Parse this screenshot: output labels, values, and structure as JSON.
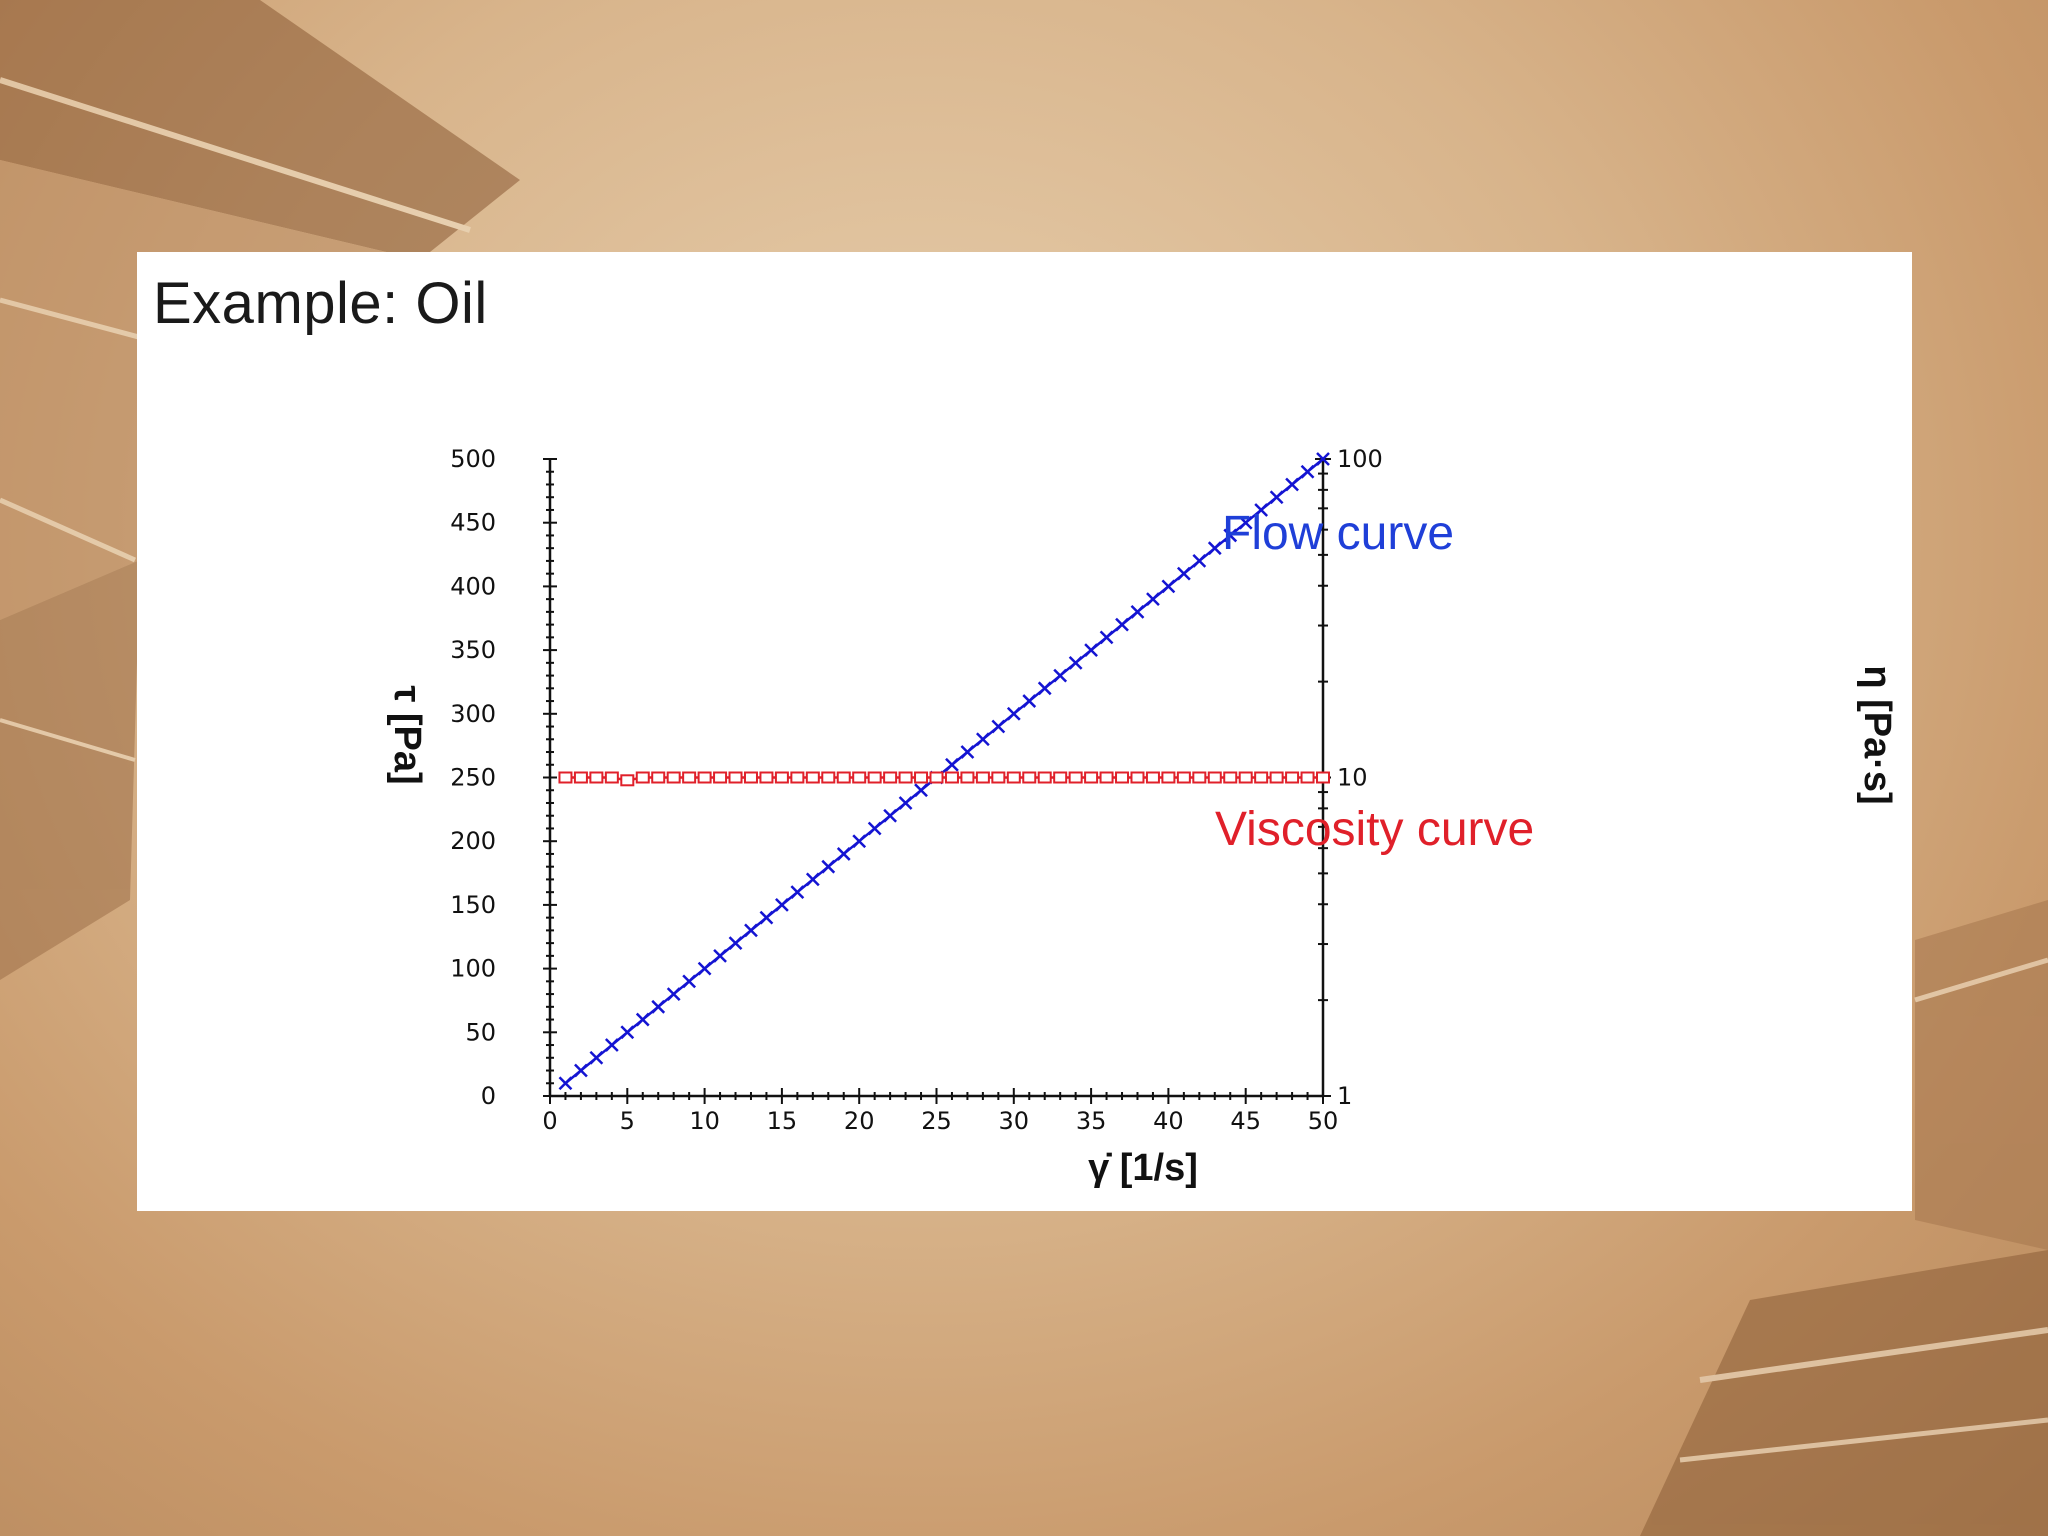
{
  "slide": {
    "title": "Example: Oil"
  },
  "chart_data": {
    "type": "line",
    "x": [
      1,
      2,
      3,
      4,
      5,
      6,
      7,
      8,
      9,
      10,
      11,
      12,
      13,
      14,
      15,
      16,
      17,
      18,
      19,
      20,
      21,
      22,
      23,
      24,
      25,
      26,
      27,
      28,
      29,
      30,
      31,
      32,
      33,
      34,
      35,
      36,
      37,
      38,
      39,
      40,
      41,
      42,
      43,
      44,
      45,
      46,
      47,
      48,
      49,
      50
    ],
    "xlabel": "γ̇ [1/s]",
    "xlim": [
      0,
      50
    ],
    "xticks": [
      0,
      5,
      10,
      15,
      20,
      25,
      30,
      35,
      40,
      45,
      50
    ],
    "ylabel": "τ [Pa]",
    "ylim": [
      0,
      500
    ],
    "yticks": [
      0,
      50,
      100,
      150,
      200,
      250,
      300,
      350,
      400,
      450,
      500
    ],
    "y2label": "η [Pa·s]",
    "y2lim": [
      1,
      100
    ],
    "y2scale": "log",
    "y2ticks": [
      1,
      10,
      100
    ],
    "grid": false,
    "series": [
      {
        "name": "Flow curve",
        "axis": "left",
        "marker": "x",
        "color": "#1414d2",
        "values": [
          10,
          20,
          30,
          40,
          50,
          60,
          70,
          80,
          90,
          100,
          110,
          120,
          130,
          140,
          150,
          160,
          170,
          180,
          190,
          200,
          210,
          220,
          230,
          240,
          250,
          260,
          270,
          280,
          290,
          300,
          310,
          320,
          330,
          340,
          350,
          360,
          370,
          380,
          390,
          400,
          410,
          420,
          430,
          440,
          450,
          460,
          470,
          480,
          490,
          500
        ]
      },
      {
        "name": "Viscosity curve",
        "axis": "right",
        "marker": "square-open",
        "color": "#e0202a",
        "values": [
          10,
          10,
          10,
          10,
          9.8,
          10,
          10,
          10,
          10,
          10,
          10,
          10,
          10,
          10,
          10,
          10,
          10,
          10,
          10,
          10,
          10,
          10,
          10,
          10,
          10,
          10,
          10,
          10,
          10,
          10,
          10,
          10,
          10,
          10,
          10,
          10,
          10,
          10,
          10,
          10,
          10,
          10,
          10,
          10,
          10,
          10,
          10,
          10,
          10,
          10
        ]
      }
    ]
  }
}
